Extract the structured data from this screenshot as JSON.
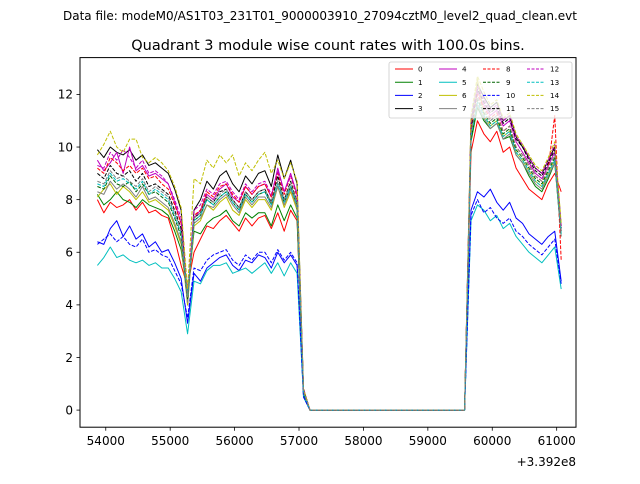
{
  "figure": {
    "suptitle": "Data file: modeM0/AS1T03_231T01_9000003910_27094cztM0_level2_quad_clean.evt"
  },
  "chart_data": {
    "type": "line",
    "title": "Quadrant 3 module wise count rates with 100.0s bins.",
    "xlabel": "",
    "ylabel": "",
    "x_offset_label": "+3.392e8",
    "xlim": [
      53600,
      61300
    ],
    "ylim": [
      -0.65,
      13.4
    ],
    "xticks": [
      54000,
      55000,
      56000,
      57000,
      58000,
      59000,
      60000,
      61000
    ],
    "yticks": [
      0,
      2,
      4,
      6,
      8,
      10,
      12
    ],
    "grid": false,
    "legend": {
      "location": "upper right",
      "columns": 4
    },
    "x_start": 53870,
    "x_step": 100,
    "gap": {
      "from": 56970,
      "to": 59570,
      "value": 0.0
    },
    "series": [
      {
        "name": "0",
        "color": "#ff0000",
        "dash": "solid",
        "values": [
          8.0,
          7.5,
          7.9,
          7.7,
          7.8,
          8.0,
          7.6,
          7.9,
          7.5,
          7.6,
          7.4,
          7.3,
          6.5,
          5.5,
          4.7,
          6.0,
          6.5,
          7.0,
          6.9,
          7.2,
          7.4,
          7.1,
          6.8,
          7.3,
          7.0,
          7.3,
          7.4,
          6.9,
          7.5,
          6.8,
          7.6,
          7.2,
          0.7,
          0.0
        ],
        "values2": [
          0.0,
          9.8,
          11.0,
          10.5,
          10.2,
          10.6,
          9.8,
          10.0,
          9.2,
          8.8,
          8.4,
          8.2,
          8.0,
          8.6,
          9.0,
          8.3
        ]
      },
      {
        "name": "1",
        "color": "#008000",
        "dash": "solid",
        "values": [
          8.2,
          7.8,
          8.0,
          8.3,
          8.0,
          7.9,
          7.7,
          8.0,
          7.8,
          7.7,
          7.6,
          7.4,
          6.8,
          6.1,
          4.4,
          6.8,
          6.7,
          7.1,
          7.3,
          7.4,
          7.6,
          7.2,
          7.0,
          7.5,
          7.3,
          7.5,
          7.5,
          7.0,
          7.8,
          7.2,
          7.8,
          7.3,
          0.6,
          0.0
        ],
        "values2": [
          0.0,
          10.2,
          11.5,
          11.0,
          10.7,
          10.9,
          10.3,
          10.4,
          9.7,
          9.4,
          8.9,
          8.5,
          8.3,
          8.8,
          9.4,
          6.6
        ]
      },
      {
        "name": "2",
        "color": "#0000ff",
        "dash": "solid",
        "values": [
          6.4,
          6.3,
          6.9,
          7.2,
          6.6,
          7.0,
          6.5,
          6.7,
          6.2,
          6.4,
          6.0,
          6.1,
          5.6,
          5.0,
          3.3,
          5.2,
          4.9,
          5.4,
          5.6,
          5.8,
          5.9,
          5.5,
          5.3,
          5.7,
          5.6,
          5.9,
          5.8,
          5.4,
          6.0,
          5.6,
          5.9,
          5.5,
          0.5,
          0.0
        ],
        "values2": [
          0.0,
          7.6,
          8.3,
          8.1,
          8.4,
          7.9,
          7.6,
          7.9,
          7.3,
          7.1,
          6.7,
          6.5,
          6.3,
          6.6,
          6.8,
          4.9
        ]
      },
      {
        "name": "3",
        "color": "#000000",
        "dash": "solid",
        "values": [
          9.9,
          9.6,
          10.0,
          9.8,
          9.7,
          9.9,
          9.5,
          9.7,
          9.3,
          9.4,
          9.2,
          9.0,
          8.4,
          7.6,
          4.0,
          7.6,
          8.0,
          8.7,
          8.4,
          8.9,
          9.1,
          8.6,
          8.3,
          8.9,
          8.6,
          9.0,
          9.1,
          8.5,
          9.7,
          8.8,
          9.5,
          8.6,
          0.8,
          0.0
        ],
        "values2": [
          0.0,
          11.0,
          12.4,
          11.9,
          11.5,
          11.7,
          11.0,
          11.2,
          10.4,
          10.0,
          9.6,
          9.2,
          9.0,
          9.5,
          10.0,
          7.0
        ]
      },
      {
        "name": "4",
        "color": "#bf00bf",
        "dash": "solid",
        "values": [
          9.5,
          9.1,
          9.4,
          9.8,
          9.0,
          10.0,
          9.1,
          9.3,
          8.9,
          9.0,
          8.8,
          8.6,
          7.9,
          7.1,
          4.2,
          7.3,
          7.6,
          8.2,
          8.0,
          8.4,
          8.6,
          8.1,
          7.9,
          8.5,
          8.2,
          8.5,
          8.6,
          8.1,
          9.2,
          8.3,
          9.0,
          8.2,
          0.7,
          0.0
        ],
        "values2": [
          0.0,
          10.8,
          12.1,
          11.6,
          11.2,
          11.4,
          10.8,
          11.0,
          10.2,
          9.8,
          9.4,
          9.0,
          8.8,
          9.3,
          9.8,
          6.8
        ]
      },
      {
        "name": "5",
        "color": "#00bfbf",
        "dash": "solid",
        "values": [
          5.5,
          5.8,
          6.2,
          5.8,
          5.9,
          5.7,
          5.6,
          5.7,
          5.5,
          5.6,
          5.4,
          5.4,
          5.0,
          4.5,
          2.9,
          4.9,
          4.8,
          5.3,
          5.5,
          5.5,
          5.6,
          5.2,
          5.3,
          5.4,
          5.2,
          5.4,
          5.6,
          5.2,
          5.6,
          5.1,
          5.6,
          5.2,
          0.5,
          0.0
        ],
        "values2": [
          0.0,
          7.2,
          7.8,
          7.6,
          7.2,
          7.4,
          6.9,
          7.1,
          6.6,
          6.3,
          6.0,
          5.8,
          5.6,
          5.9,
          6.2,
          4.6
        ]
      },
      {
        "name": "6",
        "color": "#bfbf00",
        "dash": "solid",
        "values": [
          8.1,
          8.4,
          8.6,
          8.2,
          8.5,
          8.3,
          8.0,
          8.3,
          7.9,
          8.0,
          7.8,
          7.6,
          7.0,
          6.3,
          4.0,
          7.0,
          7.2,
          7.8,
          7.6,
          7.9,
          8.1,
          7.6,
          7.4,
          8.0,
          7.7,
          8.0,
          8.0,
          7.6,
          8.5,
          7.7,
          8.3,
          7.6,
          0.7,
          0.0
        ],
        "values2": [
          0.0,
          10.5,
          12.6,
          11.2,
          10.8,
          11.0,
          10.4,
          10.6,
          9.8,
          9.5,
          9.1,
          8.7,
          8.5,
          9.0,
          9.5,
          6.7
        ]
      },
      {
        "name": "7",
        "color": "#808080",
        "dash": "solid",
        "values": [
          8.3,
          8.2,
          8.7,
          8.4,
          8.6,
          8.4,
          8.1,
          8.5,
          8.0,
          8.1,
          7.9,
          7.7,
          7.1,
          6.4,
          4.1,
          7.1,
          7.3,
          7.8,
          7.7,
          8.0,
          8.2,
          7.8,
          7.5,
          8.1,
          7.8,
          8.1,
          8.1,
          7.7,
          8.5,
          7.8,
          8.4,
          7.7,
          0.7,
          0.0
        ],
        "values2": [
          0.0,
          10.4,
          11.6,
          11.1,
          10.7,
          10.9,
          10.3,
          10.5,
          9.7,
          9.4,
          9.0,
          8.6,
          8.4,
          8.9,
          9.4,
          6.6
        ]
      },
      {
        "name": "8",
        "color": "#ff0000",
        "dash": "dashed",
        "values": [
          9.2,
          9.0,
          9.6,
          9.4,
          9.1,
          9.3,
          9.0,
          9.2,
          8.8,
          8.9,
          8.6,
          8.4,
          7.8,
          7.1,
          4.4,
          7.4,
          7.6,
          8.3,
          8.1,
          8.5,
          8.6,
          8.2,
          7.9,
          8.5,
          8.2,
          8.5,
          8.6,
          8.1,
          9.0,
          8.2,
          8.9,
          8.1,
          0.8,
          0.0
        ],
        "values2": [
          0.0,
          10.6,
          12.0,
          11.5,
          11.1,
          11.3,
          10.6,
          10.8,
          10.0,
          9.7,
          9.3,
          8.9,
          8.7,
          9.2,
          11.2,
          5.7
        ]
      },
      {
        "name": "9",
        "color": "#006400",
        "dash": "dashed",
        "values": [
          8.5,
          8.4,
          8.9,
          8.6,
          8.5,
          8.7,
          8.3,
          8.6,
          8.2,
          8.3,
          8.1,
          7.9,
          7.3,
          6.6,
          4.2,
          7.2,
          7.4,
          8.0,
          7.8,
          8.1,
          8.3,
          7.9,
          7.6,
          8.2,
          7.9,
          8.2,
          8.3,
          7.8,
          8.7,
          7.9,
          8.5,
          7.8,
          0.7,
          0.0
        ],
        "values2": [
          0.0,
          10.3,
          11.8,
          11.3,
          10.9,
          11.1,
          10.5,
          10.7,
          9.9,
          9.6,
          9.2,
          8.8,
          8.6,
          9.1,
          9.6,
          6.8
        ]
      },
      {
        "name": "10",
        "color": "#0000ff",
        "dash": "dashed",
        "values": [
          6.3,
          6.5,
          6.7,
          6.4,
          6.6,
          6.3,
          6.2,
          6.5,
          6.0,
          6.1,
          5.9,
          5.8,
          5.3,
          4.8,
          3.5,
          5.4,
          5.3,
          5.7,
          5.9,
          6.0,
          6.1,
          5.7,
          5.5,
          5.9,
          5.7,
          6.0,
          6.0,
          5.6,
          6.1,
          5.7,
          6.0,
          5.6,
          0.5,
          0.0
        ],
        "values2": [
          0.0,
          7.4,
          8.0,
          7.5,
          7.7,
          7.3,
          7.1,
          7.3,
          6.8,
          6.6,
          6.3,
          6.1,
          5.9,
          6.2,
          6.5,
          4.8
        ]
      },
      {
        "name": "11",
        "color": "#000000",
        "dash": "dashed",
        "values": [
          9.0,
          8.8,
          9.3,
          9.0,
          8.9,
          9.1,
          8.7,
          9.0,
          8.5,
          8.6,
          8.4,
          8.2,
          7.6,
          6.9,
          4.3,
          7.3,
          7.5,
          8.1,
          7.9,
          8.3,
          8.4,
          8.0,
          7.7,
          8.3,
          8.0,
          8.3,
          8.4,
          7.9,
          8.9,
          8.0,
          8.7,
          7.9,
          0.7,
          0.0
        ],
        "values2": [
          0.0,
          10.7,
          12.2,
          11.7,
          11.3,
          11.5,
          10.9,
          11.1,
          10.3,
          10.0,
          9.5,
          9.1,
          8.9,
          9.4,
          9.9,
          6.9
        ]
      },
      {
        "name": "12",
        "color": "#bf00bf",
        "dash": "dashed",
        "values": [
          9.3,
          9.2,
          9.8,
          9.5,
          9.9,
          9.6,
          9.2,
          9.5,
          9.0,
          9.1,
          8.9,
          8.6,
          8.0,
          7.3,
          4.5,
          7.6,
          7.8,
          8.4,
          8.2,
          8.6,
          8.7,
          8.3,
          8.0,
          8.6,
          8.3,
          8.6,
          8.7,
          8.2,
          9.1,
          8.3,
          8.9,
          8.2,
          0.8,
          0.0
        ],
        "values2": [
          0.0,
          10.9,
          12.3,
          11.8,
          11.4,
          11.6,
          11.0,
          11.2,
          10.4,
          10.1,
          9.6,
          9.2,
          9.0,
          9.5,
          10.1,
          7.0
        ]
      },
      {
        "name": "13",
        "color": "#00bfbf",
        "dash": "dashed",
        "values": [
          8.6,
          8.5,
          9.0,
          8.7,
          8.8,
          8.6,
          8.4,
          8.7,
          8.2,
          8.4,
          8.2,
          8.0,
          7.4,
          6.7,
          4.3,
          7.2,
          7.4,
          8.0,
          7.8,
          8.1,
          8.3,
          7.9,
          7.6,
          8.2,
          7.9,
          8.2,
          8.3,
          7.8,
          8.6,
          7.9,
          8.5,
          7.8,
          0.7,
          0.0
        ],
        "values2": [
          0.0,
          10.4,
          11.7,
          11.2,
          10.8,
          11.0,
          10.4,
          10.6,
          9.8,
          9.5,
          9.1,
          8.7,
          8.5,
          9.0,
          9.5,
          6.7
        ]
      },
      {
        "name": "14",
        "color": "#bfbf00",
        "dash": "dashed",
        "values": [
          9.7,
          10.1,
          10.6,
          10.0,
          9.8,
          10.3,
          10.3,
          9.6,
          9.4,
          9.6,
          9.4,
          9.1,
          8.5,
          7.7,
          4.6,
          8.8,
          8.6,
          9.5,
          9.2,
          9.7,
          9.4,
          9.7,
          8.9,
          9.4,
          9.1,
          9.5,
          9.8,
          9.0,
          9.5,
          8.8,
          9.4,
          8.7,
          0.8,
          0.0
        ],
        "values2": [
          0.0,
          11.2,
          12.7,
          12.1,
          11.6,
          11.8,
          11.1,
          11.3,
          10.5,
          10.1,
          9.7,
          9.3,
          9.1,
          9.6,
          10.2,
          7.1
        ]
      },
      {
        "name": "15",
        "color": "#808080",
        "dash": "dashed",
        "values": [
          8.7,
          8.6,
          9.1,
          8.8,
          8.9,
          8.7,
          8.5,
          8.8,
          8.3,
          8.5,
          8.3,
          8.1,
          7.5,
          6.8,
          4.3,
          7.3,
          7.5,
          8.1,
          7.9,
          8.2,
          8.4,
          8.0,
          7.7,
          8.3,
          8.0,
          8.3,
          8.4,
          7.9,
          8.7,
          8.0,
          8.6,
          7.9,
          0.7,
          0.0
        ],
        "values2": [
          0.0,
          10.5,
          11.9,
          11.4,
          11.0,
          11.2,
          10.6,
          10.8,
          10.0,
          9.7,
          9.3,
          8.9,
          8.7,
          9.2,
          9.7,
          6.8
        ]
      }
    ]
  }
}
